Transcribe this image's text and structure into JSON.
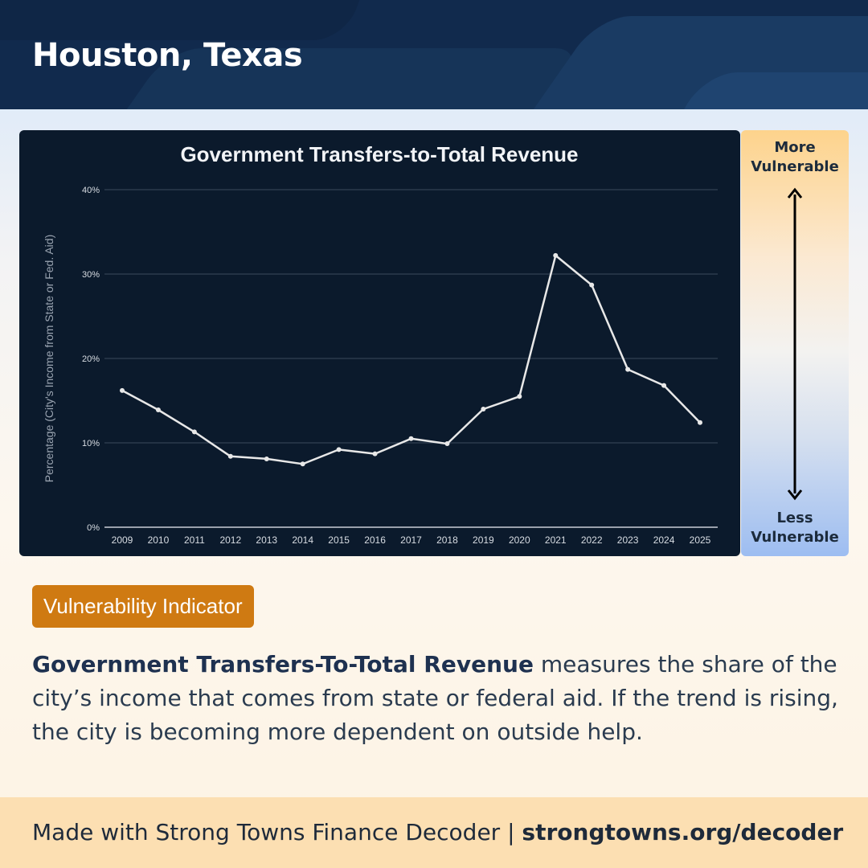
{
  "header": {
    "title": "Houston, Texas"
  },
  "chart_data": {
    "type": "line",
    "title": "Government Transfers-to-Total Revenue",
    "xlabel": "",
    "ylabel": "Percentage (City's Income from State or Fed. Aid)",
    "categories": [
      "2009",
      "2010",
      "2011",
      "2012",
      "2013",
      "2014",
      "2015",
      "2016",
      "2017",
      "2018",
      "2019",
      "2020",
      "2021",
      "2022",
      "2023",
      "2024",
      "2025"
    ],
    "series": [
      {
        "values": [
          16.2,
          13.9,
          11.3,
          8.4,
          8.1,
          7.5,
          9.2,
          8.7,
          10.5,
          9.9,
          14.0,
          15.5,
          32.2,
          28.7,
          18.7,
          16.8,
          12.4
        ]
      }
    ],
    "ylim": [
      0,
      40
    ],
    "yticks": [
      0,
      10,
      20,
      30,
      40
    ],
    "ytick_labels": [
      "0%",
      "10%",
      "20%",
      "30%",
      "40%"
    ],
    "grid": true,
    "legend": "none",
    "colors": {
      "background": "#0b1a2c",
      "line": "#e8e8e8",
      "grid": "#3b4a5c",
      "text": "#d8dde3"
    }
  },
  "scale": {
    "top_label": "More\nVulnerable",
    "bottom_label": "Less\nVulnerable"
  },
  "badge": {
    "label": "Vulnerability Indicator"
  },
  "description": {
    "bold": "Government Transfers-To-Total Revenue",
    "rest": " measures the share of the city’s income that comes from state or federal aid. If the trend is rising, the city is becoming more dependent on outside help."
  },
  "footer": {
    "text": "Made with Strong Towns Finance Decoder | ",
    "link": "strongtowns.org/decoder"
  }
}
